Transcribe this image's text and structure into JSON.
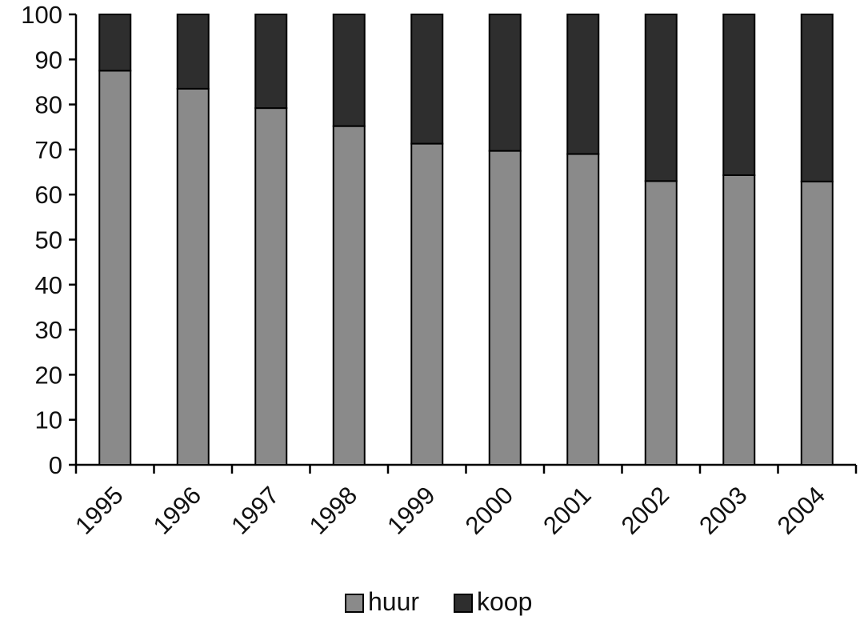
{
  "chart_data": {
    "type": "bar",
    "stacked": true,
    "categories": [
      "1995",
      "1996",
      "1997",
      "1998",
      "1999",
      "2000",
      "2001",
      "2002",
      "2003",
      "2004"
    ],
    "series": [
      {
        "name": "huur",
        "color": "#8a8a8a",
        "values": [
          87.5,
          83.5,
          79.2,
          75.2,
          71.3,
          69.7,
          69.0,
          63.0,
          64.3,
          62.9
        ]
      },
      {
        "name": "koop",
        "color": "#2e2e2e",
        "values": [
          12.5,
          16.5,
          20.8,
          24.8,
          28.7,
          30.3,
          31.0,
          37.0,
          35.7,
          37.1
        ]
      }
    ],
    "ylim": [
      0,
      100
    ],
    "yticks": [
      "0",
      "10",
      "20",
      "30",
      "40",
      "50",
      "60",
      "70",
      "80",
      "90",
      "100"
    ],
    "xlabel": "",
    "ylabel": "",
    "grid": false,
    "legend_position": "bottom"
  }
}
